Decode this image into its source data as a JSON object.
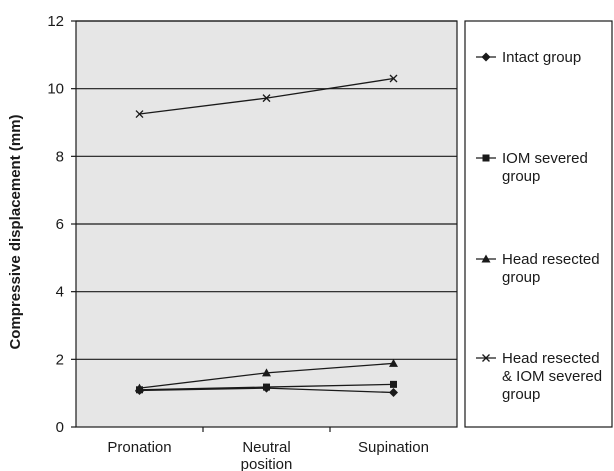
{
  "chart_data": {
    "type": "line",
    "categories": [
      "Pronation",
      "Neutral position",
      "Supination"
    ],
    "category_lines": [
      [
        "Pronation"
      ],
      [
        "Neutral",
        "position"
      ],
      [
        "Supination"
      ]
    ],
    "ylabel": "Compressive displacement (mm)",
    "ylim": [
      0,
      12
    ],
    "yticks": [
      0,
      2,
      4,
      6,
      8,
      10,
      12
    ],
    "grid": true,
    "legend_position": "right",
    "plot_background": "#e6e6e6",
    "series": [
      {
        "name": "Intact group",
        "marker": "diamond",
        "values": [
          1.08,
          1.15,
          1.02
        ],
        "legend_lines": [
          "Intact group"
        ]
      },
      {
        "name": "IOM severed group",
        "marker": "square",
        "values": [
          1.1,
          1.18,
          1.26
        ],
        "legend_lines": [
          "IOM severed",
          "group"
        ]
      },
      {
        "name": "Head resected group",
        "marker": "triangle",
        "values": [
          1.15,
          1.6,
          1.88
        ],
        "legend_lines": [
          "Head resected",
          "group"
        ]
      },
      {
        "name": "Head resected & IOM severed group",
        "marker": "x",
        "values": [
          9.25,
          9.72,
          10.3
        ],
        "legend_lines": [
          "Head resected",
          "& IOM severed",
          "group"
        ]
      }
    ]
  }
}
